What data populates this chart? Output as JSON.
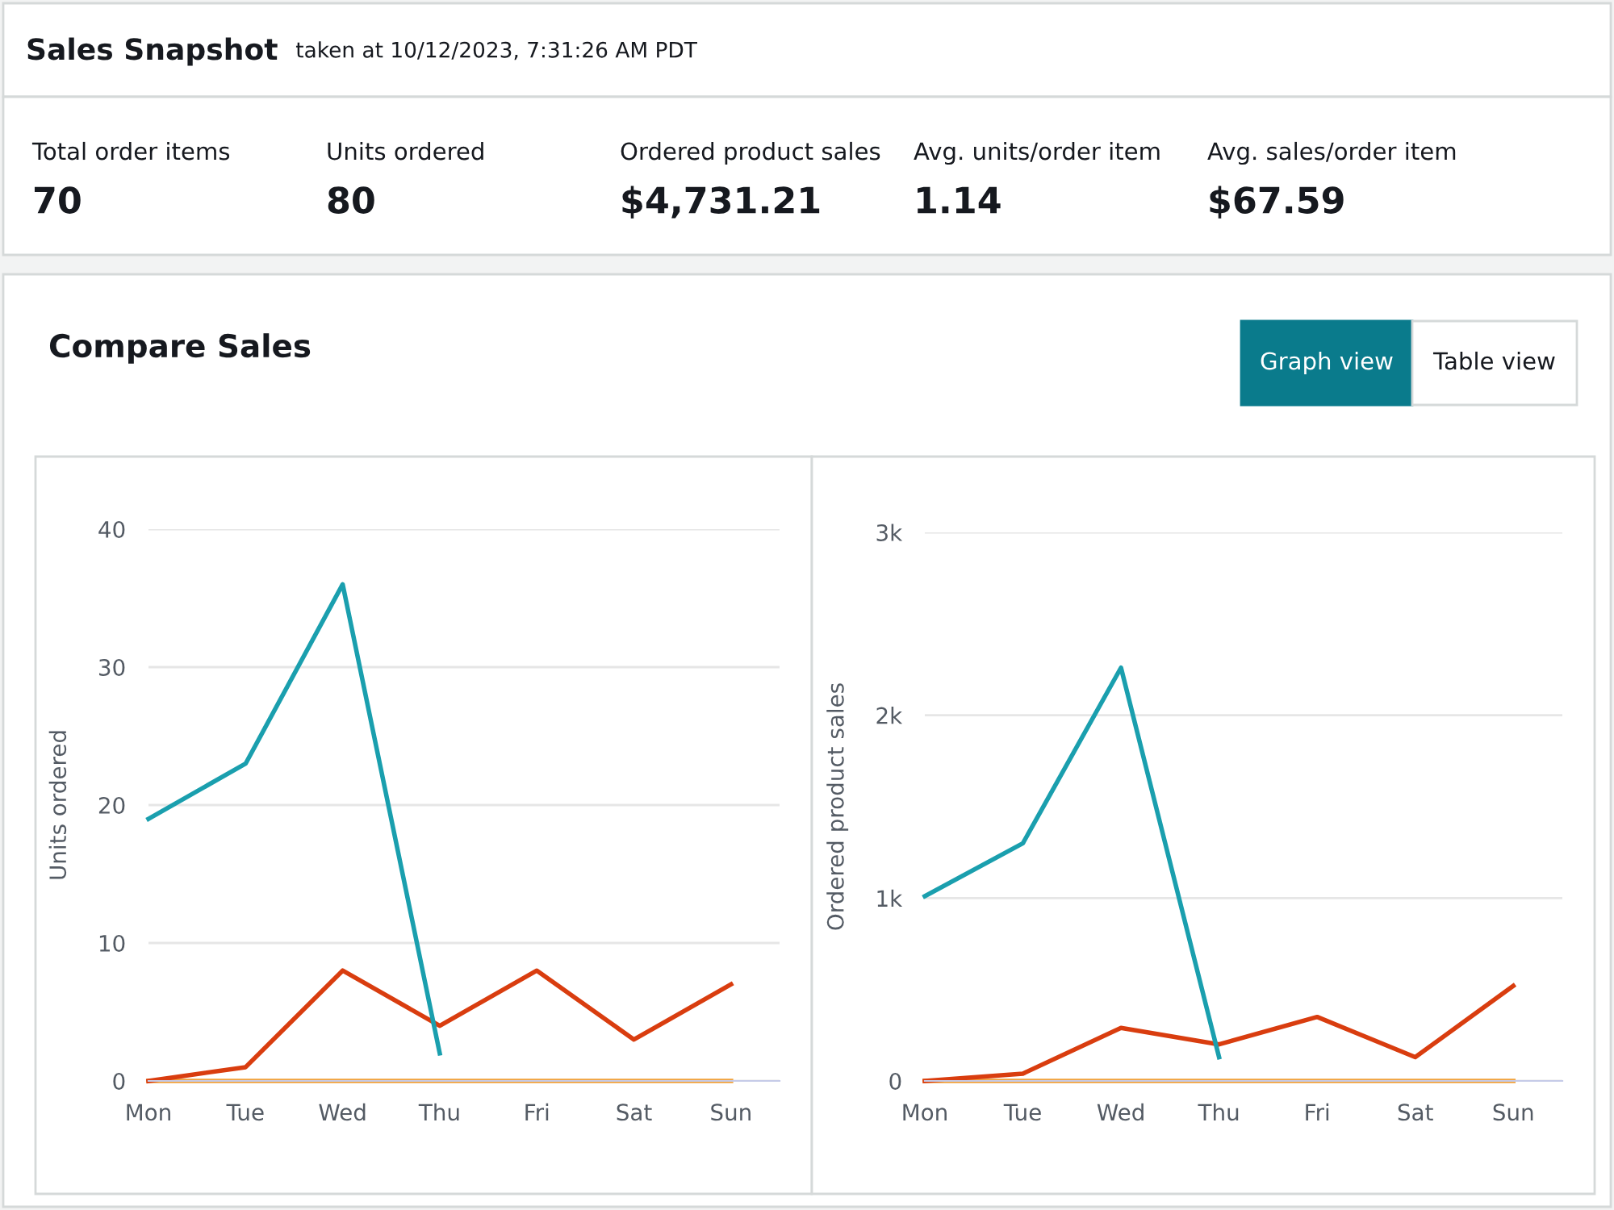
{
  "chart_data": [
    {
      "type": "other",
      "title": "Sales Snapshot",
      "subtitle": "taken at 10/12/2023, 7:31:26 AM PDT",
      "annotations": [
        "Total order items",
        "70",
        "Units ordered",
        "80",
        "Ordered product sales",
        "$4,731.21",
        "Avg. units/order item",
        "1.14",
        "Avg. sales/order item",
        "$67.59",
        "Compare Sales",
        "Graph view",
        "Table view"
      ]
    },
    {
      "type": "line",
      "categories": [
        "Mon",
        "Tue",
        "Wed",
        "Thu",
        "Fri",
        "Sat",
        "Sun"
      ],
      "ylabel": "Units ordered",
      "ylim": [
        0,
        40
      ],
      "yticks": [
        0,
        10,
        20,
        30,
        40
      ],
      "grid": "y",
      "series": [
        {
          "color": "#1a9fae",
          "values": [
            19,
            23,
            36,
            2,
            null,
            null,
            null
          ]
        },
        {
          "color": "#d93d0f",
          "values": [
            0,
            1,
            8,
            4,
            8,
            3,
            7
          ]
        },
        {
          "color": "#f0a23c",
          "values": [
            0,
            0,
            0,
            0,
            0,
            0,
            0
          ]
        }
      ]
    },
    {
      "type": "line",
      "categories": [
        "Mon",
        "Tue",
        "Wed",
        "Thu",
        "Fri",
        "Sat",
        "Sun"
      ],
      "ylabel": "Ordered product sales",
      "ylim": [
        0,
        3000
      ],
      "yticks": [
        0,
        {
          "value": 1000,
          "label": "1k"
        },
        {
          "value": 2000,
          "label": "2k"
        },
        {
          "value": 3000,
          "label": "3k"
        }
      ],
      "grid": "y",
      "series": [
        {
          "color": "#1a9fae",
          "values": [
            1010,
            1300,
            2260,
            130,
            null,
            null,
            null
          ]
        },
        {
          "color": "#d93d0f",
          "values": [
            0,
            40,
            290,
            200,
            350,
            130,
            520
          ]
        },
        {
          "color": "#f0a23c",
          "values": [
            0,
            0,
            0,
            0,
            0,
            0,
            0
          ]
        }
      ]
    }
  ]
}
